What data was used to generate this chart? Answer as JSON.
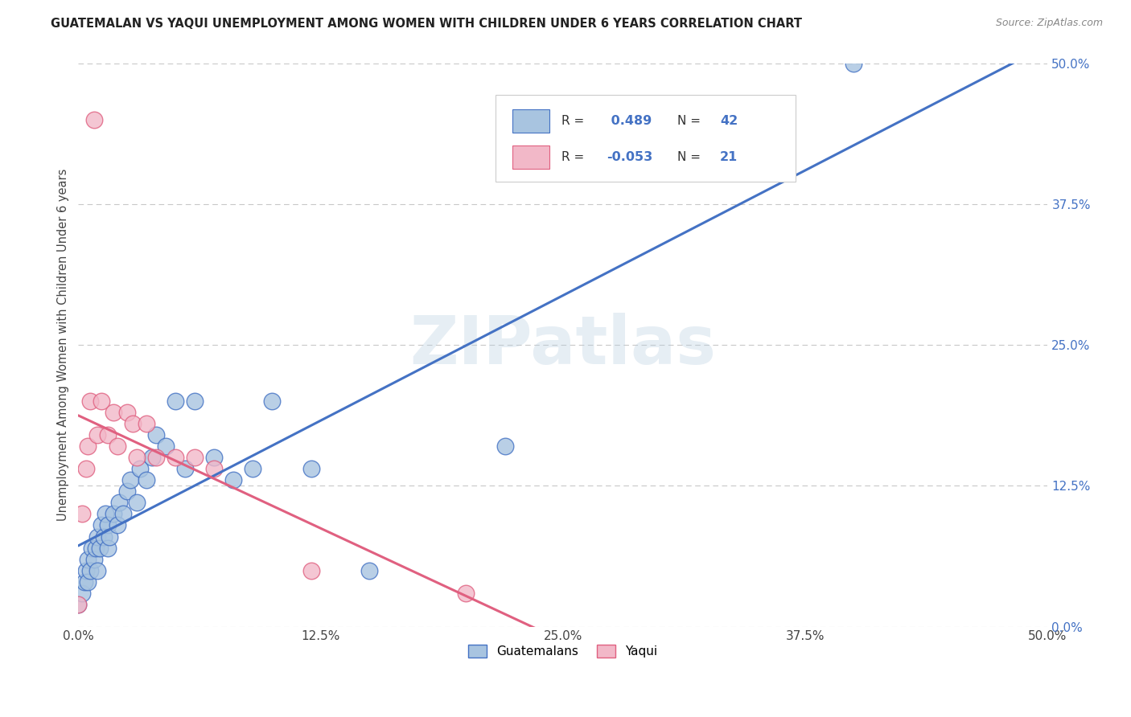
{
  "title": "GUATEMALAN VS YAQUI UNEMPLOYMENT AMONG WOMEN WITH CHILDREN UNDER 6 YEARS CORRELATION CHART",
  "source": "Source: ZipAtlas.com",
  "ylabel": "Unemployment Among Women with Children Under 6 years",
  "xlabel_ticks": [
    "0.0%",
    "12.5%",
    "25.0%",
    "37.5%",
    "50.0%"
  ],
  "ylabel_ticks": [
    "0.0%",
    "12.5%",
    "25.0%",
    "37.5%",
    "50.0%"
  ],
  "xlim": [
    0.0,
    0.5
  ],
  "ylim": [
    0.0,
    0.5
  ],
  "guatemalan_color": "#a8c4e0",
  "yaqui_color": "#f2b8c8",
  "guatemalan_line_color": "#4472c4",
  "yaqui_line_color": "#e06080",
  "r_guatemalan": 0.489,
  "n_guatemalan": 42,
  "r_yaqui": -0.053,
  "n_yaqui": 21,
  "guatemalan_points_x": [
    0.0,
    0.002,
    0.003,
    0.004,
    0.005,
    0.005,
    0.006,
    0.007,
    0.008,
    0.009,
    0.01,
    0.01,
    0.011,
    0.012,
    0.013,
    0.014,
    0.015,
    0.015,
    0.016,
    0.018,
    0.02,
    0.021,
    0.023,
    0.025,
    0.027,
    0.03,
    0.032,
    0.035,
    0.038,
    0.04,
    0.045,
    0.05,
    0.055,
    0.06,
    0.07,
    0.08,
    0.09,
    0.1,
    0.12,
    0.15,
    0.22,
    0.4
  ],
  "guatemalan_points_y": [
    0.02,
    0.03,
    0.04,
    0.05,
    0.04,
    0.06,
    0.05,
    0.07,
    0.06,
    0.07,
    0.05,
    0.08,
    0.07,
    0.09,
    0.08,
    0.1,
    0.07,
    0.09,
    0.08,
    0.1,
    0.09,
    0.11,
    0.1,
    0.12,
    0.13,
    0.11,
    0.14,
    0.13,
    0.15,
    0.17,
    0.16,
    0.2,
    0.14,
    0.2,
    0.15,
    0.13,
    0.14,
    0.2,
    0.14,
    0.05,
    0.16,
    0.5
  ],
  "yaqui_points_x": [
    0.0,
    0.002,
    0.004,
    0.005,
    0.006,
    0.008,
    0.01,
    0.012,
    0.015,
    0.018,
    0.02,
    0.025,
    0.028,
    0.03,
    0.035,
    0.04,
    0.05,
    0.06,
    0.07,
    0.12,
    0.2
  ],
  "yaqui_points_y": [
    0.02,
    0.1,
    0.14,
    0.16,
    0.2,
    0.45,
    0.17,
    0.2,
    0.17,
    0.19,
    0.16,
    0.19,
    0.18,
    0.15,
    0.18,
    0.15,
    0.15,
    0.15,
    0.14,
    0.05,
    0.03
  ],
  "watermark": "ZIPatlas",
  "background_color": "#ffffff",
  "grid_color": "#c8c8c8"
}
